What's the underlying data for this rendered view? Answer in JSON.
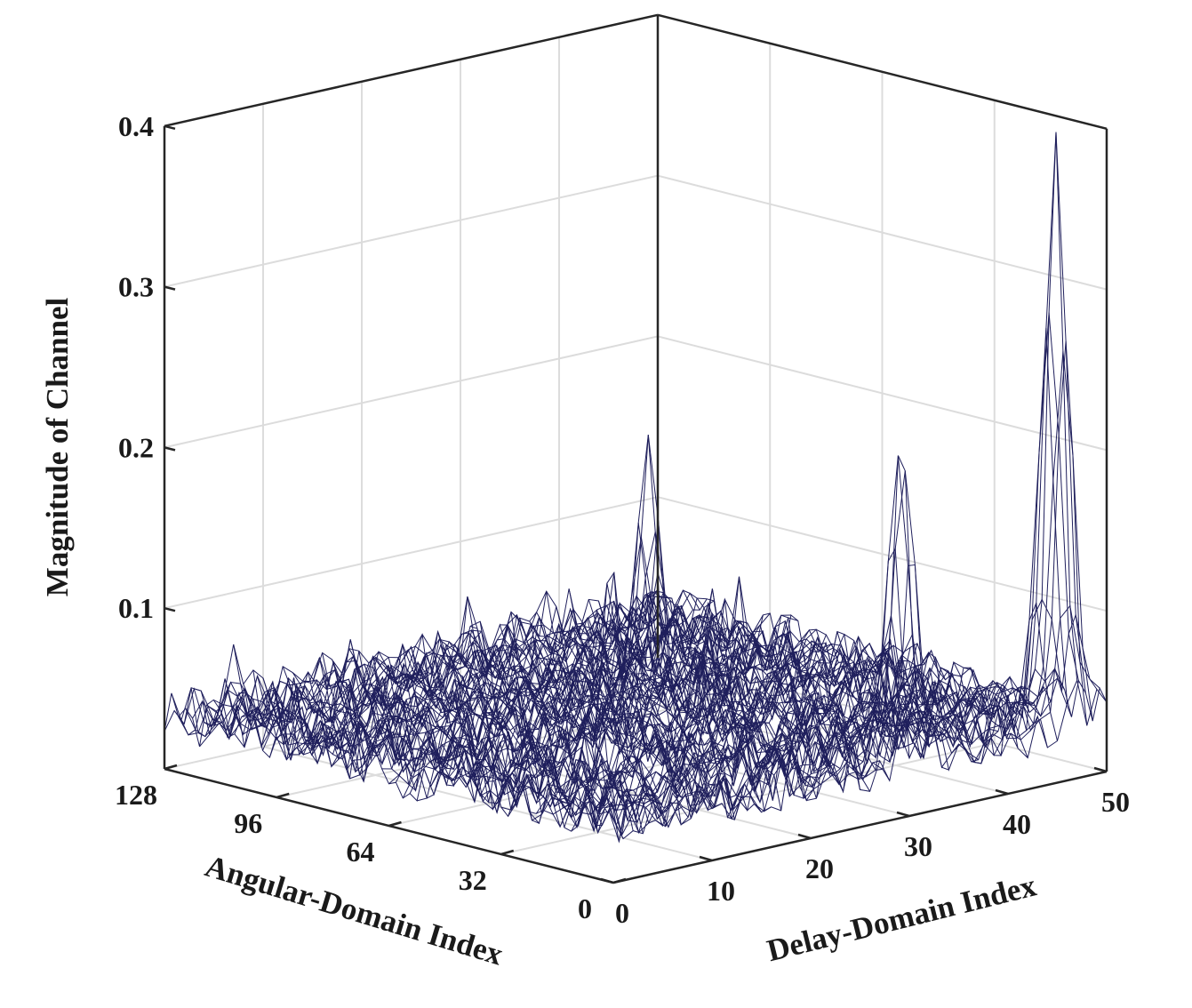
{
  "chart_data": {
    "type": "surface",
    "style": "3d-mesh-wireframe",
    "title": "",
    "xlabel": "Delay-Domain Index",
    "ylabel": "Angular-Domain Index",
    "zlabel": "Magnitude of Channel",
    "xlim": [
      0,
      50
    ],
    "ylim": [
      0,
      128
    ],
    "zlim": [
      0,
      0.4
    ],
    "x_ticks": [
      "0",
      "10",
      "20",
      "30",
      "40",
      "50"
    ],
    "y_ticks": [
      "0",
      "32",
      "64",
      "96",
      "128"
    ],
    "z_ticks": [
      "0.1",
      "0.2",
      "0.3",
      "0.4"
    ],
    "grid": true,
    "mesh_color": "#1f1f5c",
    "noise_floor": 0.035,
    "peaks": [
      {
        "delay": 47,
        "angle": 6,
        "magnitude": 0.385
      },
      {
        "delay": 31,
        "angle": 5,
        "magnitude": 0.225
      },
      {
        "delay": 27,
        "angle": 66,
        "magnitude": 0.205
      },
      {
        "delay": 15,
        "angle": 43,
        "magnitude": 0.145
      },
      {
        "delay": 24,
        "angle": 40,
        "magnitude": 0.09
      }
    ]
  }
}
